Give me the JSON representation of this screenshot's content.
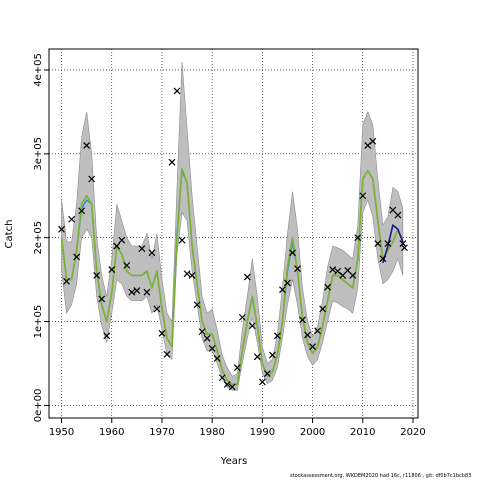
{
  "chart_data": {
    "type": "line",
    "xlabel": "Years",
    "ylabel": "Catch",
    "xlim": [
      1947.5,
      2021
    ],
    "ylim": [
      -15000,
      425000
    ],
    "xticks": [
      1950,
      1960,
      1970,
      1980,
      1990,
      2000,
      2010,
      2020
    ],
    "yticks": [
      0,
      100000,
      200000,
      300000,
      400000
    ],
    "ytick_labels": [
      "0e+00",
      "1e+05",
      "2e+05",
      "3e+05",
      "4e+05"
    ],
    "grid": true,
    "colors": {
      "band": "#bebebe",
      "band_edge": "#8c8c8c",
      "green": "#7ab32e",
      "blue": "#1f8fcf",
      "navy": "#1a1a8c",
      "marker": "#000000"
    },
    "years": [
      1950,
      1951,
      1952,
      1953,
      1954,
      1955,
      1956,
      1957,
      1958,
      1959,
      1960,
      1961,
      1962,
      1963,
      1964,
      1965,
      1966,
      1967,
      1968,
      1969,
      1970,
      1971,
      1972,
      1973,
      1974,
      1975,
      1976,
      1977,
      1978,
      1979,
      1980,
      1981,
      1982,
      1983,
      1984,
      1985,
      1986,
      1987,
      1988,
      1989,
      1990,
      1991,
      1992,
      1993,
      1994,
      1995,
      1996,
      1997,
      1998,
      1999,
      2000,
      2001,
      2002,
      2003,
      2004,
      2005,
      2006,
      2007,
      2008,
      2009,
      2010,
      2011,
      2012,
      2013,
      2014,
      2015,
      2016,
      2017,
      2018
    ],
    "series": [
      {
        "values": [
          200000,
          150000,
          150000,
          185000,
          235000,
          245000,
          240000,
          160000,
          120000,
          100000,
          135000,
          190000,
          180000,
          160000,
          155000,
          155000,
          155000,
          160000,
          140000,
          160000,
          115000,
          80000,
          70000,
          205000,
          280000,
          265000,
          190000,
          145000,
          100000,
          85000,
          85000,
          65000,
          42000,
          30000,
          25000,
          25000,
          65000,
          100000,
          130000,
          95000,
          50000,
          35000,
          40000,
          60000,
          100000,
          160000,
          195000,
          160000,
          105000,
          75000,
          62000,
          70000,
          95000,
          125000,
          155000,
          155000,
          150000,
          145000,
          140000,
          175000,
          270000,
          280000,
          270000,
          220000,
          175000,
          185000,
          195000,
          210000,
          195000
        ]
      },
      {
        "values": [
          200000,
          150000,
          150000,
          185000,
          240000,
          250000,
          240000,
          160000,
          120000,
          100000,
          135000,
          190000,
          180000,
          160000,
          155000,
          155000,
          155000,
          160000,
          140000,
          160000,
          115000,
          80000,
          70000,
          200000,
          282000,
          265000,
          190000,
          145000,
          100000,
          85000,
          85000,
          65000,
          42000,
          30000,
          25000,
          25000,
          65000,
          100000,
          130000,
          95000,
          50000,
          35000,
          40000,
          60000,
          100000,
          165000,
          200000,
          160000,
          105000,
          75000,
          62000,
          70000,
          95000,
          125000,
          155000,
          155000,
          150000,
          145000,
          140000,
          175000,
          270000,
          280000,
          270000,
          220000,
          175000,
          185000,
          195000,
          210000,
          195000
        ]
      },
      {
        "values": [
          null,
          null,
          null,
          null,
          null,
          null,
          null,
          null,
          null,
          null,
          null,
          null,
          null,
          null,
          null,
          null,
          null,
          null,
          null,
          null,
          null,
          null,
          null,
          null,
          null,
          null,
          null,
          null,
          null,
          null,
          null,
          null,
          null,
          null,
          null,
          null,
          null,
          null,
          null,
          null,
          null,
          null,
          null,
          null,
          null,
          null,
          null,
          null,
          null,
          null,
          null,
          null,
          null,
          null,
          null,
          null,
          null,
          null,
          null,
          null,
          null,
          null,
          null,
          null,
          170000,
          190000,
          215000,
          210000,
          195000
        ]
      }
    ],
    "band_lower": [
      160000,
      110000,
      120000,
      145000,
      200000,
      210000,
      200000,
      130000,
      95000,
      75000,
      110000,
      150000,
      145000,
      130000,
      125000,
      125000,
      125000,
      130000,
      110000,
      120000,
      90000,
      60000,
      55000,
      180000,
      230000,
      220000,
      160000,
      120000,
      80000,
      65000,
      65000,
      50000,
      32000,
      22000,
      18000,
      18000,
      50000,
      80000,
      105000,
      75000,
      38000,
      26000,
      30000,
      45000,
      80000,
      120000,
      150000,
      120000,
      80000,
      58000,
      48000,
      55000,
      75000,
      100000,
      125000,
      122000,
      118000,
      115000,
      110000,
      140000,
      230000,
      245000,
      225000,
      175000,
      145000,
      150000,
      160000,
      175000,
      155000
    ],
    "band_upper": [
      245000,
      195000,
      195000,
      240000,
      320000,
      350000,
      300000,
      200000,
      155000,
      130000,
      175000,
      240000,
      220000,
      200000,
      190000,
      190000,
      190000,
      205000,
      175000,
      205000,
      150000,
      110000,
      100000,
      260000,
      410000,
      330000,
      250000,
      190000,
      130000,
      110000,
      115000,
      90000,
      60000,
      45000,
      35000,
      38000,
      90000,
      130000,
      175000,
      130000,
      70000,
      50000,
      55000,
      85000,
      140000,
      205000,
      255000,
      210000,
      140000,
      100000,
      82000,
      95000,
      125000,
      165000,
      190000,
      188000,
      185000,
      180000,
      175000,
      215000,
      335000,
      350000,
      335000,
      270000,
      215000,
      225000,
      260000,
      255000,
      235000
    ],
    "observations": [
      {
        "x": 1950,
        "y": 210000
      },
      {
        "x": 1951,
        "y": 148000
      },
      {
        "x": 1952,
        "y": 222000
      },
      {
        "x": 1953,
        "y": 177000
      },
      {
        "x": 1954,
        "y": 232000
      },
      {
        "x": 1955,
        "y": 310000
      },
      {
        "x": 1956,
        "y": 270000
      },
      {
        "x": 1957,
        "y": 155000
      },
      {
        "x": 1958,
        "y": 127000
      },
      {
        "x": 1959,
        "y": 83000
      },
      {
        "x": 1960,
        "y": 162000
      },
      {
        "x": 1961,
        "y": 190000
      },
      {
        "x": 1962,
        "y": 197000
      },
      {
        "x": 1963,
        "y": 167000
      },
      {
        "x": 1964,
        "y": 135000
      },
      {
        "x": 1965,
        "y": 137000
      },
      {
        "x": 1966,
        "y": 187000
      },
      {
        "x": 1967,
        "y": 135000
      },
      {
        "x": 1968,
        "y": 182000
      },
      {
        "x": 1969,
        "y": 115000
      },
      {
        "x": 1970,
        "y": 86000
      },
      {
        "x": 1971,
        "y": 61000
      },
      {
        "x": 1972,
        "y": 290000
      },
      {
        "x": 1973,
        "y": 375000
      },
      {
        "x": 1974,
        "y": 197000
      },
      {
        "x": 1975,
        "y": 157000
      },
      {
        "x": 1976,
        "y": 155000
      },
      {
        "x": 1977,
        "y": 120000
      },
      {
        "x": 1978,
        "y": 88000
      },
      {
        "x": 1979,
        "y": 80000
      },
      {
        "x": 1980,
        "y": 68000
      },
      {
        "x": 1981,
        "y": 56000
      },
      {
        "x": 1982,
        "y": 33000
      },
      {
        "x": 1983,
        "y": 25000
      },
      {
        "x": 1984,
        "y": 22000
      },
      {
        "x": 1985,
        "y": 45000
      },
      {
        "x": 1986,
        "y": 105000
      },
      {
        "x": 1987,
        "y": 153000
      },
      {
        "x": 1988,
        "y": 95000
      },
      {
        "x": 1989,
        "y": 58000
      },
      {
        "x": 1990,
        "y": 28000
      },
      {
        "x": 1991,
        "y": 38000
      },
      {
        "x": 1992,
        "y": 60000
      },
      {
        "x": 1993,
        "y": 83000
      },
      {
        "x": 1994,
        "y": 138000
      },
      {
        "x": 1995,
        "y": 146000
      },
      {
        "x": 1996,
        "y": 182000
      },
      {
        "x": 1997,
        "y": 163000
      },
      {
        "x": 1998,
        "y": 102000
      },
      {
        "x": 1999,
        "y": 84000
      },
      {
        "x": 2000,
        "y": 70000
      },
      {
        "x": 2001,
        "y": 89000
      },
      {
        "x": 2002,
        "y": 115000
      },
      {
        "x": 2003,
        "y": 141000
      },
      {
        "x": 2004,
        "y": 162000
      },
      {
        "x": 2005,
        "y": 160000
      },
      {
        "x": 2006,
        "y": 155000
      },
      {
        "x": 2007,
        "y": 161000
      },
      {
        "x": 2008,
        "y": 155000
      },
      {
        "x": 2009,
        "y": 200000
      },
      {
        "x": 2010,
        "y": 250000
      },
      {
        "x": 2011,
        "y": 310000
      },
      {
        "x": 2012,
        "y": 315000
      },
      {
        "x": 2013,
        "y": 193000
      },
      {
        "x": 2014,
        "y": 175000
      },
      {
        "x": 2015,
        "y": 193000
      },
      {
        "x": 2016,
        "y": 233000
      },
      {
        "x": 2017,
        "y": 227000
      },
      {
        "x": 2018,
        "y": 193000
      },
      {
        "x": 2018.3,
        "y": 188000
      }
    ]
  },
  "footer": "stockassessment.org, WKDEM2020 had 16c, r11806 , git: df0b7c1bcb83"
}
